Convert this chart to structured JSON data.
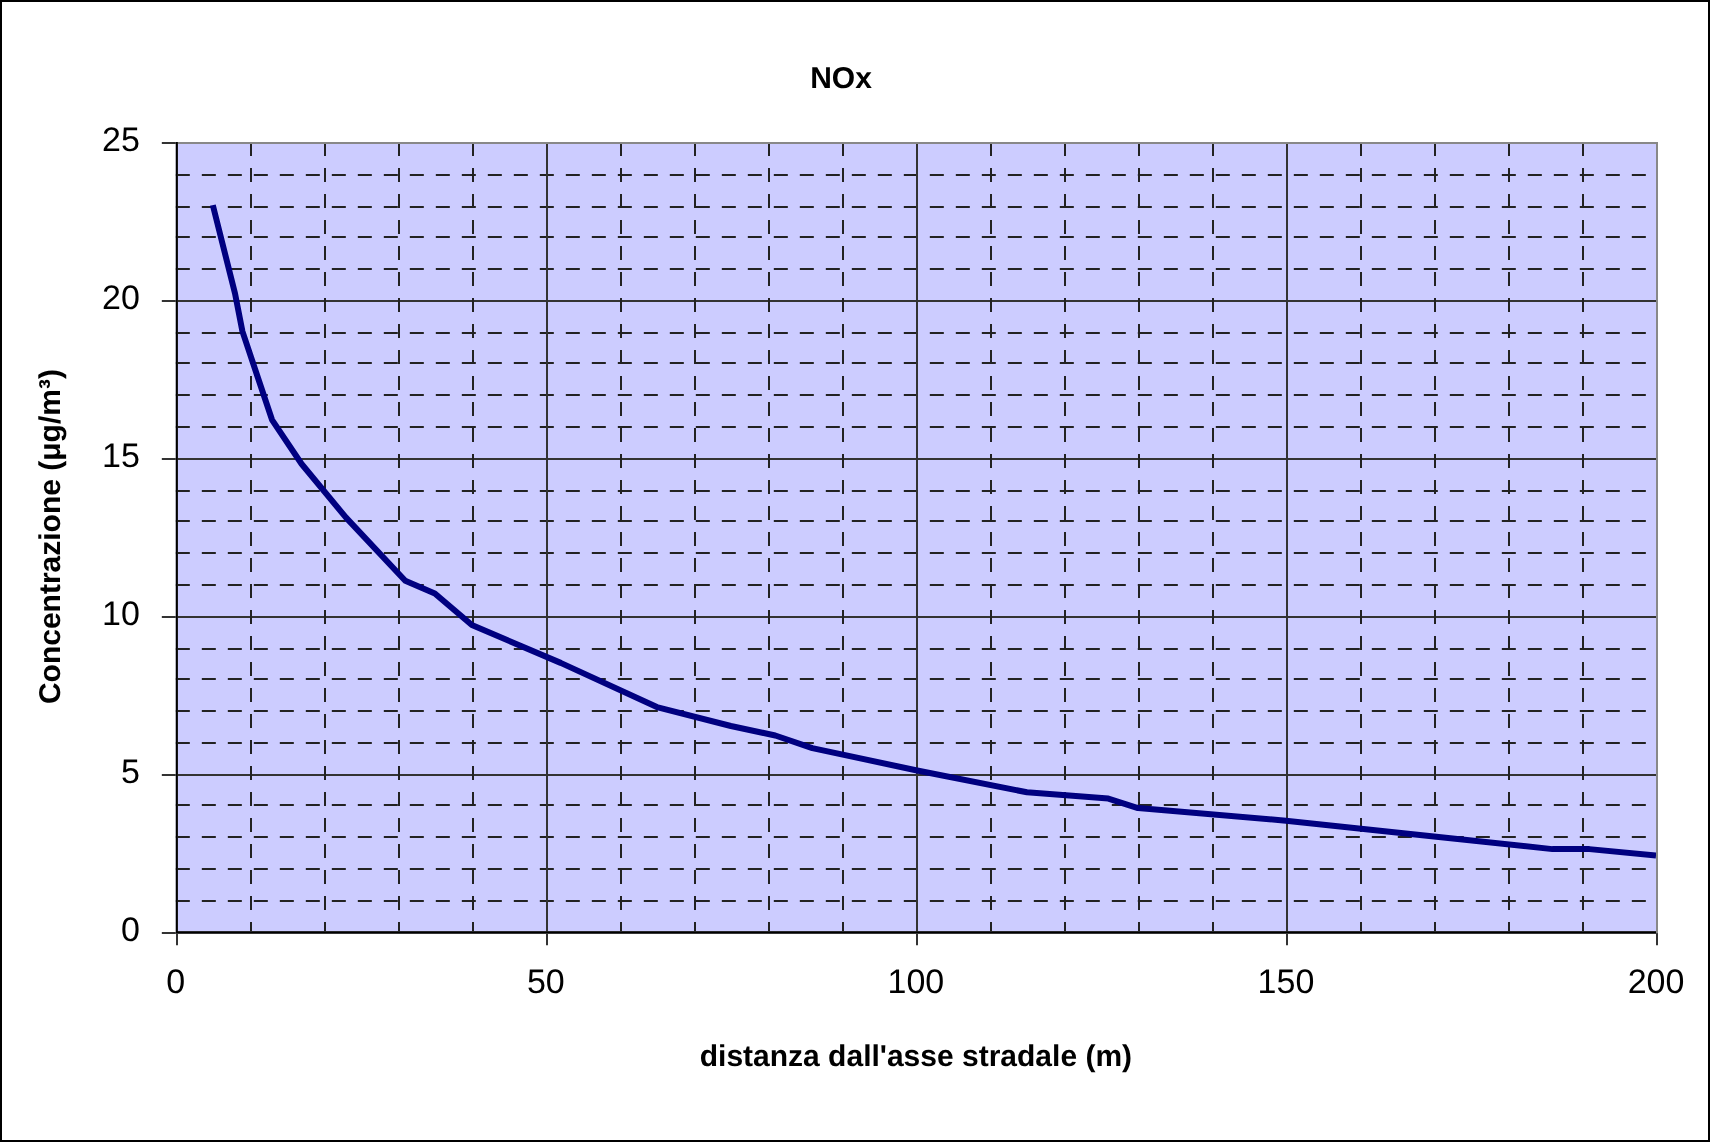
{
  "chart_data": {
    "type": "line",
    "title": "NOx",
    "xlabel": "distanza dall'asse stradale (m)",
    "ylabel": "Concentrazione (μg/m³)",
    "x": [
      5,
      8,
      9,
      13,
      17,
      23,
      31,
      35,
      40,
      52,
      65,
      75,
      81,
      86,
      100,
      115,
      126,
      130,
      150,
      170,
      186,
      191,
      200
    ],
    "series": [
      {
        "color": "#000080",
        "values": [
          23,
          20.2,
          19,
          16.2,
          14.8,
          13.1,
          11.1,
          10.7,
          9.7,
          8.5,
          7.1,
          6.5,
          6.2,
          5.8,
          5.1,
          4.4,
          4.2,
          3.9,
          3.5,
          3.0,
          2.6,
          2.6,
          2.4
        ]
      }
    ],
    "xlim": [
      0,
      200
    ],
    "ylim": [
      0,
      25
    ],
    "xticks": [
      0,
      {
        "value": 10,
        "label": null
      },
      {
        "value": 20,
        "label": null
      },
      {
        "value": 30,
        "label": null
      },
      {
        "value": 40,
        "label": null
      },
      50,
      {
        "value": 60,
        "label": null
      },
      {
        "value": 70,
        "label": null
      },
      {
        "value": 80,
        "label": null
      },
      {
        "value": 90,
        "label": null
      },
      100,
      {
        "value": 110,
        "label": null
      },
      {
        "value": 120,
        "label": null
      },
      {
        "value": 130,
        "label": null
      },
      {
        "value": 140,
        "label": null
      },
      150,
      {
        "value": 160,
        "label": null
      },
      {
        "value": 170,
        "label": null
      },
      {
        "value": 180,
        "label": null
      },
      {
        "value": 190,
        "label": null
      },
      200
    ],
    "yticks": [
      0,
      {
        "value": 1,
        "label": null
      },
      {
        "value": 2,
        "label": null
      },
      {
        "value": 3,
        "label": null
      },
      {
        "value": 4,
        "label": null
      },
      5,
      {
        "value": 6,
        "label": null
      },
      {
        "value": 7,
        "label": null
      },
      {
        "value": 8,
        "label": null
      },
      {
        "value": 9,
        "label": null
      },
      10,
      {
        "value": 11,
        "label": null
      },
      {
        "value": 12,
        "label": null
      },
      {
        "value": 13,
        "label": null
      },
      {
        "value": 14,
        "label": null
      },
      15,
      {
        "value": 16,
        "label": null
      },
      {
        "value": 17,
        "label": null
      },
      {
        "value": 18,
        "label": null
      },
      {
        "value": 19,
        "label": null
      },
      20,
      {
        "value": 21,
        "label": null
      },
      {
        "value": 22,
        "label": null
      },
      {
        "value": 23,
        "label": null
      },
      {
        "value": 24,
        "label": null
      },
      25
    ],
    "grid": true,
    "legend": false,
    "marker": "none",
    "line_style": "solid"
  }
}
